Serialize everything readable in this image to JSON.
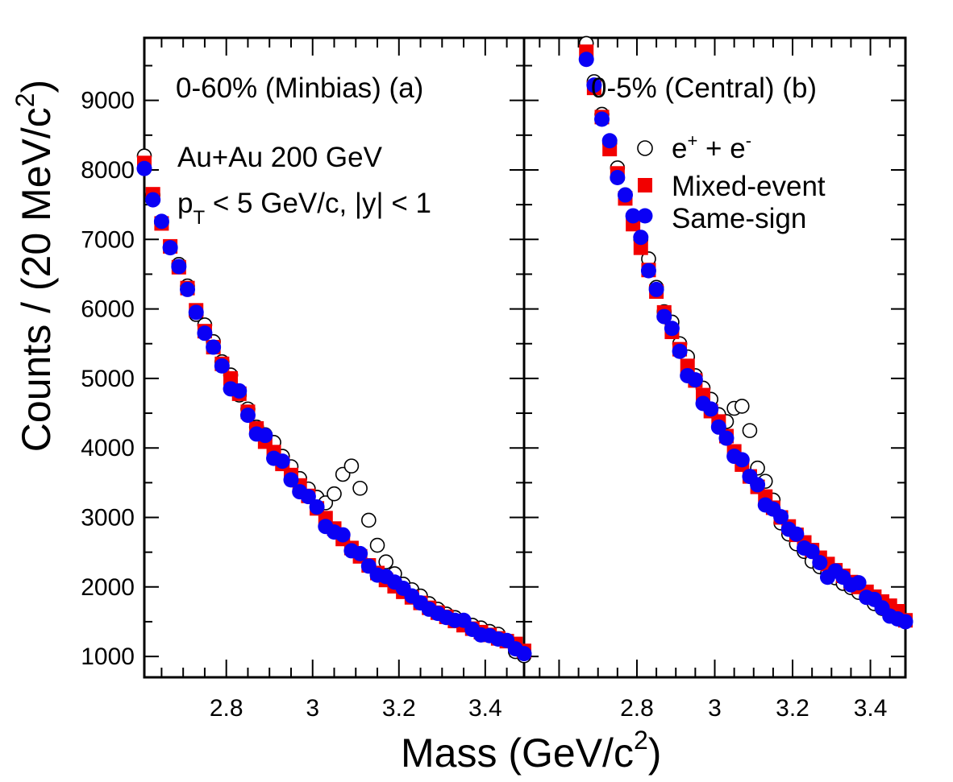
{
  "chart_data": {
    "type": "scatter",
    "ylabel": {
      "main": "Counts / (20 MeV/c",
      "sup": "2",
      "tail": ")"
    },
    "xlabel": {
      "main": "Mass (GeV/c",
      "sup": "2",
      "tail": ")"
    },
    "y_ticks": [
      "1000",
      "2000",
      "3000",
      "4000",
      "5000",
      "6000",
      "7000",
      "8000",
      "9000"
    ],
    "ylim": [
      700,
      9900
    ],
    "legend": {
      "placement": "top-right of panel (b)",
      "entries": [
        {
          "base": "e",
          "sup": "+",
          "mid": " + e",
          "sup2": "-"
        },
        {
          "text": "Mixed-event"
        },
        {
          "text": "Same-sign"
        }
      ]
    },
    "panels": [
      {
        "name": "panel-a",
        "label": "0-60% (Minbias)  (a)",
        "annotation_line1": "Au+Au 200 GeV",
        "annotation_line2_base": "p",
        "annotation_line2_sub": "T",
        "annotation_line2_rest": " < 5 GeV/c, |y| < 1",
        "xlim": [
          2.61,
          3.49
        ],
        "x_ticks": [
          "2.8",
          "3",
          "3.2",
          "3.4"
        ],
        "series": {
          "ee": {
            "x": [
              2.61,
              2.63,
              2.65,
              2.67,
              2.69,
              2.71,
              2.73,
              2.75,
              2.77,
              2.79,
              2.81,
              2.83,
              2.85,
              2.87,
              2.89,
              2.91,
              2.93,
              2.95,
              2.97,
              2.99,
              3.01,
              3.03,
              3.05,
              3.07,
              3.09,
              3.11,
              3.13,
              3.15,
              3.17,
              3.19,
              3.21,
              3.23,
              3.25,
              3.27,
              3.29,
              3.31,
              3.33,
              3.35,
              3.37,
              3.39,
              3.41,
              3.43,
              3.45,
              3.47,
              3.49
            ],
            "y": [
              8200,
              7640,
              7240,
              6890,
              6640,
              6330,
              5920,
              5770,
              5530,
              5240,
              5050,
              4760,
              4560,
              4300,
              4190,
              4080,
              3880,
              3730,
              3560,
              3410,
              3290,
              3210,
              3340,
              3620,
              3740,
              3420,
              2960,
              2600,
              2360,
              2190,
              2040,
              1960,
              1870,
              1760,
              1680,
              1610,
              1560,
              1490,
              1450,
              1410,
              1360,
              1320,
              1230,
              1070,
              1010
            ]
          },
          "mixed": {
            "x": [
              2.61,
              2.63,
              2.65,
              2.67,
              2.69,
              2.71,
              2.73,
              2.75,
              2.77,
              2.79,
              2.81,
              2.83,
              2.85,
              2.87,
              2.89,
              2.91,
              2.93,
              2.95,
              2.97,
              2.99,
              3.01,
              3.03,
              3.05,
              3.07,
              3.09,
              3.11,
              3.13,
              3.15,
              3.17,
              3.19,
              3.21,
              3.23,
              3.25,
              3.27,
              3.29,
              3.31,
              3.33,
              3.35,
              3.37,
              3.39,
              3.41,
              3.43,
              3.45,
              3.47,
              3.49
            ],
            "y": [
              8100,
              7650,
              7230,
              6900,
              6600,
              6300,
              5980,
              5680,
              5450,
              5210,
              5000,
              4780,
              4520,
              4280,
              4090,
              3940,
              3770,
              3610,
              3460,
              3310,
              3130,
              2990,
              2840,
              2690,
              2560,
              2440,
              2310,
              2200,
              2100,
              2010,
              1930,
              1850,
              1770,
              1700,
              1630,
              1570,
              1510,
              1450,
              1400,
              1350,
              1310,
              1260,
              1220,
              1180,
              1080
            ]
          },
          "same": {
            "x": [
              2.61,
              2.63,
              2.65,
              2.67,
              2.69,
              2.71,
              2.73,
              2.75,
              2.77,
              2.79,
              2.81,
              2.83,
              2.85,
              2.87,
              2.89,
              2.91,
              2.93,
              2.95,
              2.97,
              2.99,
              3.01,
              3.03,
              3.05,
              3.07,
              3.09,
              3.11,
              3.13,
              3.15,
              3.17,
              3.19,
              3.21,
              3.23,
              3.25,
              3.27,
              3.29,
              3.31,
              3.33,
              3.35,
              3.37,
              3.39,
              3.41,
              3.43,
              3.45,
              3.47,
              3.49
            ],
            "y": [
              8020,
              7570,
              7260,
              6880,
              6610,
              6280,
              5950,
              5650,
              5450,
              5180,
              4850,
              4820,
              4470,
              4200,
              4180,
              3850,
              3810,
              3540,
              3370,
              3300,
              3150,
              2870,
              2790,
              2750,
              2520,
              2480,
              2300,
              2170,
              2150,
              2070,
              1980,
              1870,
              1770,
              1680,
              1620,
              1560,
              1520,
              1520,
              1390,
              1310,
              1300,
              1250,
              1230,
              1110,
              1040
            ]
          }
        }
      },
      {
        "name": "panel-b",
        "label": "0-5% (Central) (b)",
        "xlim": [
          2.51,
          3.49
        ],
        "x_ticks": [
          "2.8",
          "3",
          "3.2",
          "3.4"
        ],
        "series": {
          "ee": {
            "x": [
              2.67,
              2.69,
              2.71,
              2.73,
              2.75,
              2.77,
              2.79,
              2.81,
              2.83,
              2.85,
              2.87,
              2.89,
              2.91,
              2.93,
              2.95,
              2.97,
              2.99,
              3.01,
              3.03,
              3.05,
              3.07,
              3.09,
              3.11,
              3.13,
              3.15,
              3.17,
              3.19,
              3.21,
              3.23,
              3.25,
              3.27,
              3.29,
              3.31,
              3.33,
              3.35,
              3.37,
              3.39,
              3.41,
              3.43,
              3.45,
              3.47,
              3.49
            ],
            "y": [
              9820,
              9270,
              8800,
              8390,
              8030,
              7640,
              7330,
              7000,
              6720,
              6310,
              5960,
              5810,
              5500,
              5310,
              5040,
              4860,
              4700,
              4480,
              4380,
              4570,
              4600,
              4250,
              3710,
              3520,
              3250,
              2920,
              2760,
              2620,
              2510,
              2370,
              2290,
              2200,
              2130,
              2050,
              1990,
              1920,
              1850,
              1760,
              1690,
              1620,
              1560,
              1510
            ]
          },
          "mixed": {
            "x": [
              2.67,
              2.69,
              2.71,
              2.73,
              2.75,
              2.77,
              2.79,
              2.81,
              2.83,
              2.85,
              2.87,
              2.89,
              2.91,
              2.93,
              2.95,
              2.97,
              2.99,
              3.01,
              3.03,
              3.05,
              3.07,
              3.09,
              3.11,
              3.13,
              3.15,
              3.17,
              3.19,
              3.21,
              3.23,
              3.25,
              3.27,
              3.29,
              3.31,
              3.33,
              3.35,
              3.37,
              3.39,
              3.41,
              3.43,
              3.45,
              3.47,
              3.49
            ],
            "y": [
              9700,
              9180,
              8760,
              8300,
              7950,
              7590,
              7220,
              6880,
              6560,
              6250,
              5950,
              5670,
              5420,
              5180,
              4970,
              4760,
              4530,
              4380,
              4170,
              3950,
              3760,
              3590,
              3440,
              3300,
              3140,
              3000,
              2870,
              2750,
              2640,
              2530,
              2420,
              2330,
              2240,
              2160,
              2070,
              2000,
              1930,
              1860,
              1790,
              1730,
              1650,
              1520
            ]
          },
          "same": {
            "x": [
              2.67,
              2.69,
              2.71,
              2.73,
              2.75,
              2.77,
              2.79,
              2.81,
              2.83,
              2.85,
              2.87,
              2.89,
              2.91,
              2.93,
              2.95,
              2.97,
              2.99,
              3.01,
              3.03,
              3.05,
              3.07,
              3.09,
              3.11,
              3.13,
              3.15,
              3.17,
              3.19,
              3.21,
              3.23,
              3.25,
              3.27,
              3.29,
              3.31,
              3.33,
              3.35,
              3.37,
              3.39,
              3.41,
              3.43,
              3.45,
              3.47,
              3.49
            ],
            "y": [
              9590,
              9220,
              8730,
              8420,
              7890,
              7640,
              7340,
              7030,
              6550,
              6280,
              5890,
              5720,
              5390,
              5040,
              4980,
              4640,
              4560,
              4300,
              4140,
              3880,
              3830,
              3590,
              3470,
              3180,
              3120,
              3010,
              2830,
              2760,
              2560,
              2510,
              2350,
              2140,
              2230,
              2140,
              2030,
              2060,
              1850,
              1820,
              1700,
              1580,
              1540,
              1500
            ]
          }
        }
      }
    ]
  },
  "colors": {
    "mixed": "#f20000",
    "same": "#0a00f5",
    "ee": "#000000"
  }
}
